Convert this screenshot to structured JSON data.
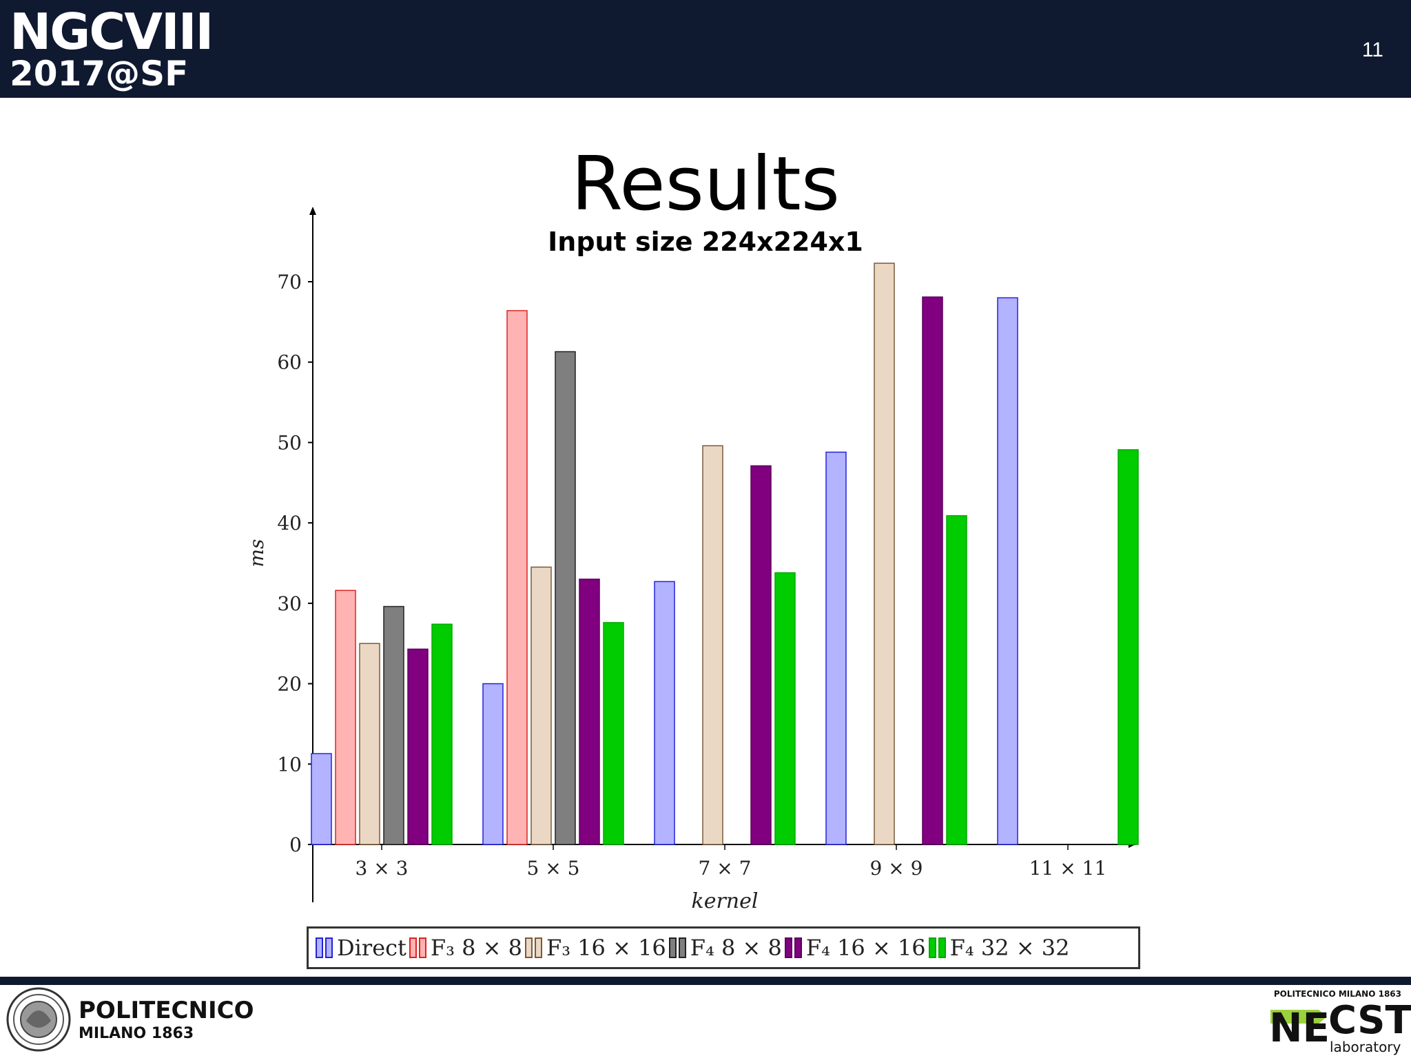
{
  "header": {
    "conference_line1": "NGCVIII",
    "conference_line2": "2017@SF",
    "slide_number": "11",
    "background": "#0f1930"
  },
  "slide": {
    "title": "Results"
  },
  "footer": {
    "university_name": "POLITECNICO",
    "university_sub": "MILANO 1863",
    "lab_top": "POLITECNICO MILANO 1863",
    "lab_ne": "NE",
    "lab_cst": "CST",
    "lab_sub": "laboratory",
    "lab_accent": "#9bd23c"
  },
  "chart_data": {
    "type": "bar",
    "title": "Input size 224x224x1",
    "xlabel": "kernel",
    "ylabel": "ms",
    "categories": [
      "3 × 3",
      "5 × 5",
      "7 × 7",
      "9 × 9",
      "11 × 11"
    ],
    "ylim": [
      0,
      80
    ],
    "yticks": [
      0,
      10,
      20,
      30,
      40,
      50,
      60,
      70
    ],
    "grid": false,
    "legend_position": "bottom",
    "series": [
      {
        "name": "Direct",
        "values": [
          11.3,
          20.0,
          32.7,
          48.8,
          68.0
        ],
        "fill": "#b3b3ff",
        "stroke": "#2222dd"
      },
      {
        "name": "F₃ 8 × 8",
        "values": [
          31.6,
          66.4,
          null,
          null,
          null
        ],
        "fill": "#ffb3b3",
        "stroke": "#dd2222"
      },
      {
        "name": "F₃ 16 × 16",
        "values": [
          25.0,
          34.5,
          49.6,
          72.3,
          null
        ],
        "fill": "#ead8c4",
        "stroke": "#7a5a3a"
      },
      {
        "name": "F₄ 8 × 8",
        "values": [
          29.6,
          61.3,
          null,
          null,
          null
        ],
        "fill": "#7f7f7f",
        "stroke": "#222222"
      },
      {
        "name": "F₄ 16 × 16",
        "values": [
          24.3,
          33.0,
          47.1,
          68.1,
          null
        ],
        "fill": "#800080",
        "stroke": "#5a005a"
      },
      {
        "name": "F₄ 32 × 32",
        "values": [
          27.4,
          27.6,
          33.8,
          40.9,
          49.1
        ],
        "fill": "#00cc00",
        "stroke": "#00aa00"
      }
    ]
  }
}
